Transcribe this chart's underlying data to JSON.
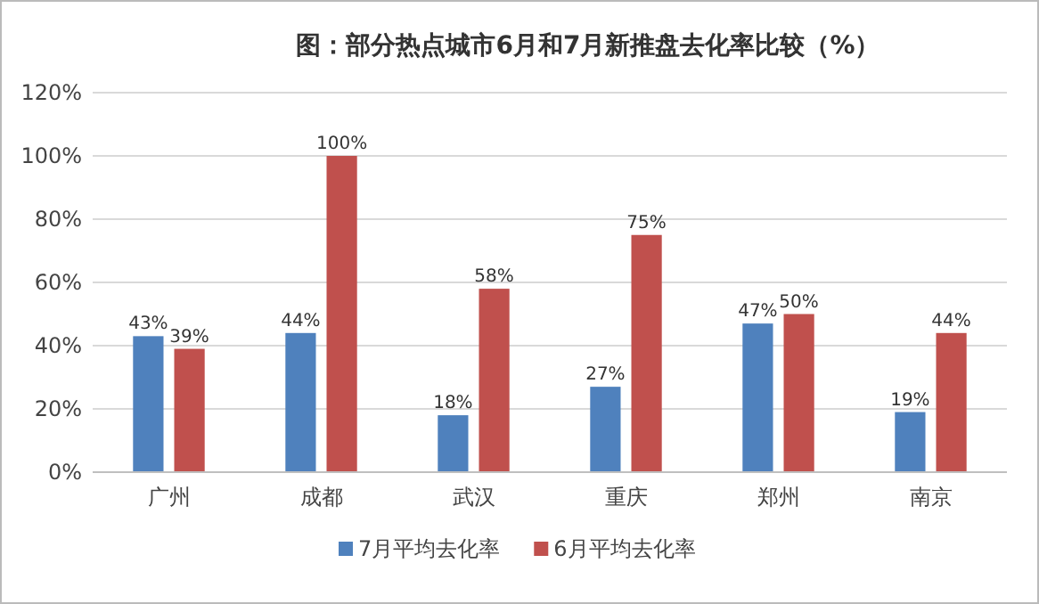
{
  "chart_data": {
    "type": "bar",
    "title": "图：部分热点城市6月和7月新推盘去化率比较（%）",
    "categories": [
      "广州",
      "成都",
      "武汉",
      "重庆",
      "郑州",
      "南京"
    ],
    "series": [
      {
        "name": "7月平均去化率",
        "color": "#4f81bd",
        "values": [
          43,
          44,
          18,
          27,
          47,
          19
        ],
        "value_labels": [
          "43%",
          "44%",
          "18%",
          "27%",
          "47%",
          "19%"
        ]
      },
      {
        "name": "6月平均去化率",
        "color": "#c0504d",
        "values": [
          39,
          100,
          58,
          75,
          50,
          44
        ],
        "value_labels": [
          "39%",
          "100%",
          "58%",
          "75%",
          "50%",
          "44%"
        ]
      }
    ],
    "ylim": [
      0,
      120
    ],
    "yticks": [
      {
        "value": 0,
        "label": "0%"
      },
      {
        "value": 20,
        "label": "20%"
      },
      {
        "value": 40,
        "label": "40%"
      },
      {
        "value": 60,
        "label": "60%"
      },
      {
        "value": 80,
        "label": "80%"
      },
      {
        "value": 100,
        "label": "100%"
      },
      {
        "value": 120,
        "label": "120%"
      }
    ],
    "grid": "y",
    "legend": "bottom"
  }
}
